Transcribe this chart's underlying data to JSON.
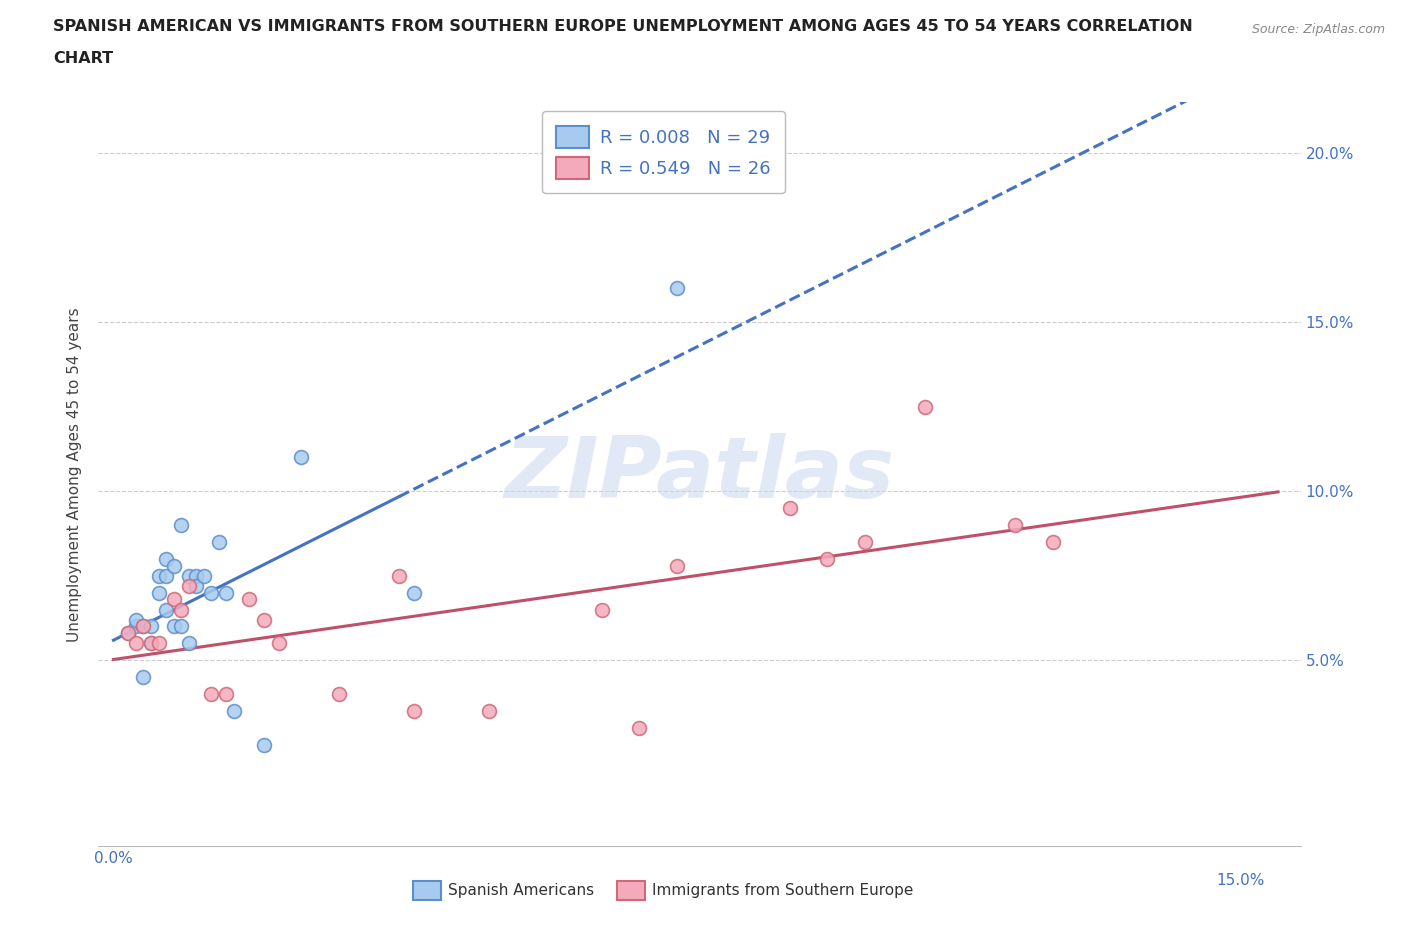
{
  "title_line1": "SPANISH AMERICAN VS IMMIGRANTS FROM SOUTHERN EUROPE UNEMPLOYMENT AMONG AGES 45 TO 54 YEARS CORRELATION",
  "title_line2": "CHART",
  "source": "Source: ZipAtlas.com",
  "ylabel": "Unemployment Among Ages 45 to 54 years",
  "xlim": [
    -0.002,
    0.158
  ],
  "ylim": [
    -0.005,
    0.215
  ],
  "xticks": [
    0.0,
    0.025,
    0.05,
    0.075,
    0.1,
    0.125,
    0.15
  ],
  "yticks": [
    0.0,
    0.05,
    0.1,
    0.15,
    0.2
  ],
  "legend_label1": "R = 0.008   N = 29",
  "legend_label2": "R = 0.549   N = 26",
  "legend_bottom_label1": "Spanish Americans",
  "legend_bottom_label2": "Immigrants from Southern Europe",
  "blue_face_color": "#A8CAEE",
  "pink_face_color": "#F4AABB",
  "blue_edge_color": "#5B8FCC",
  "pink_edge_color": "#D06878",
  "blue_line_color": "#4472C4",
  "pink_line_color": "#C0506A",
  "legend_text_color": "#4472C4",
  "watermark_text": "ZIPatlas",
  "blue_x": [
    0.002,
    0.003,
    0.003,
    0.004,
    0.004,
    0.005,
    0.005,
    0.006,
    0.006,
    0.007,
    0.007,
    0.007,
    0.008,
    0.008,
    0.009,
    0.009,
    0.01,
    0.01,
    0.011,
    0.011,
    0.012,
    0.013,
    0.014,
    0.015,
    0.016,
    0.02,
    0.025,
    0.04,
    0.075
  ],
  "blue_y": [
    0.058,
    0.06,
    0.062,
    0.045,
    0.06,
    0.055,
    0.06,
    0.07,
    0.075,
    0.065,
    0.075,
    0.08,
    0.06,
    0.078,
    0.06,
    0.09,
    0.075,
    0.055,
    0.075,
    0.072,
    0.075,
    0.07,
    0.085,
    0.07,
    0.035,
    0.025,
    0.11,
    0.07,
    0.16
  ],
  "pink_x": [
    0.002,
    0.003,
    0.004,
    0.005,
    0.006,
    0.008,
    0.009,
    0.01,
    0.013,
    0.015,
    0.018,
    0.02,
    0.022,
    0.03,
    0.038,
    0.04,
    0.05,
    0.065,
    0.07,
    0.075,
    0.09,
    0.095,
    0.1,
    0.108,
    0.12,
    0.125
  ],
  "pink_y": [
    0.058,
    0.055,
    0.06,
    0.055,
    0.055,
    0.068,
    0.065,
    0.072,
    0.04,
    0.04,
    0.068,
    0.062,
    0.055,
    0.04,
    0.075,
    0.035,
    0.035,
    0.065,
    0.03,
    0.078,
    0.095,
    0.08,
    0.085,
    0.125,
    0.09,
    0.085
  ]
}
